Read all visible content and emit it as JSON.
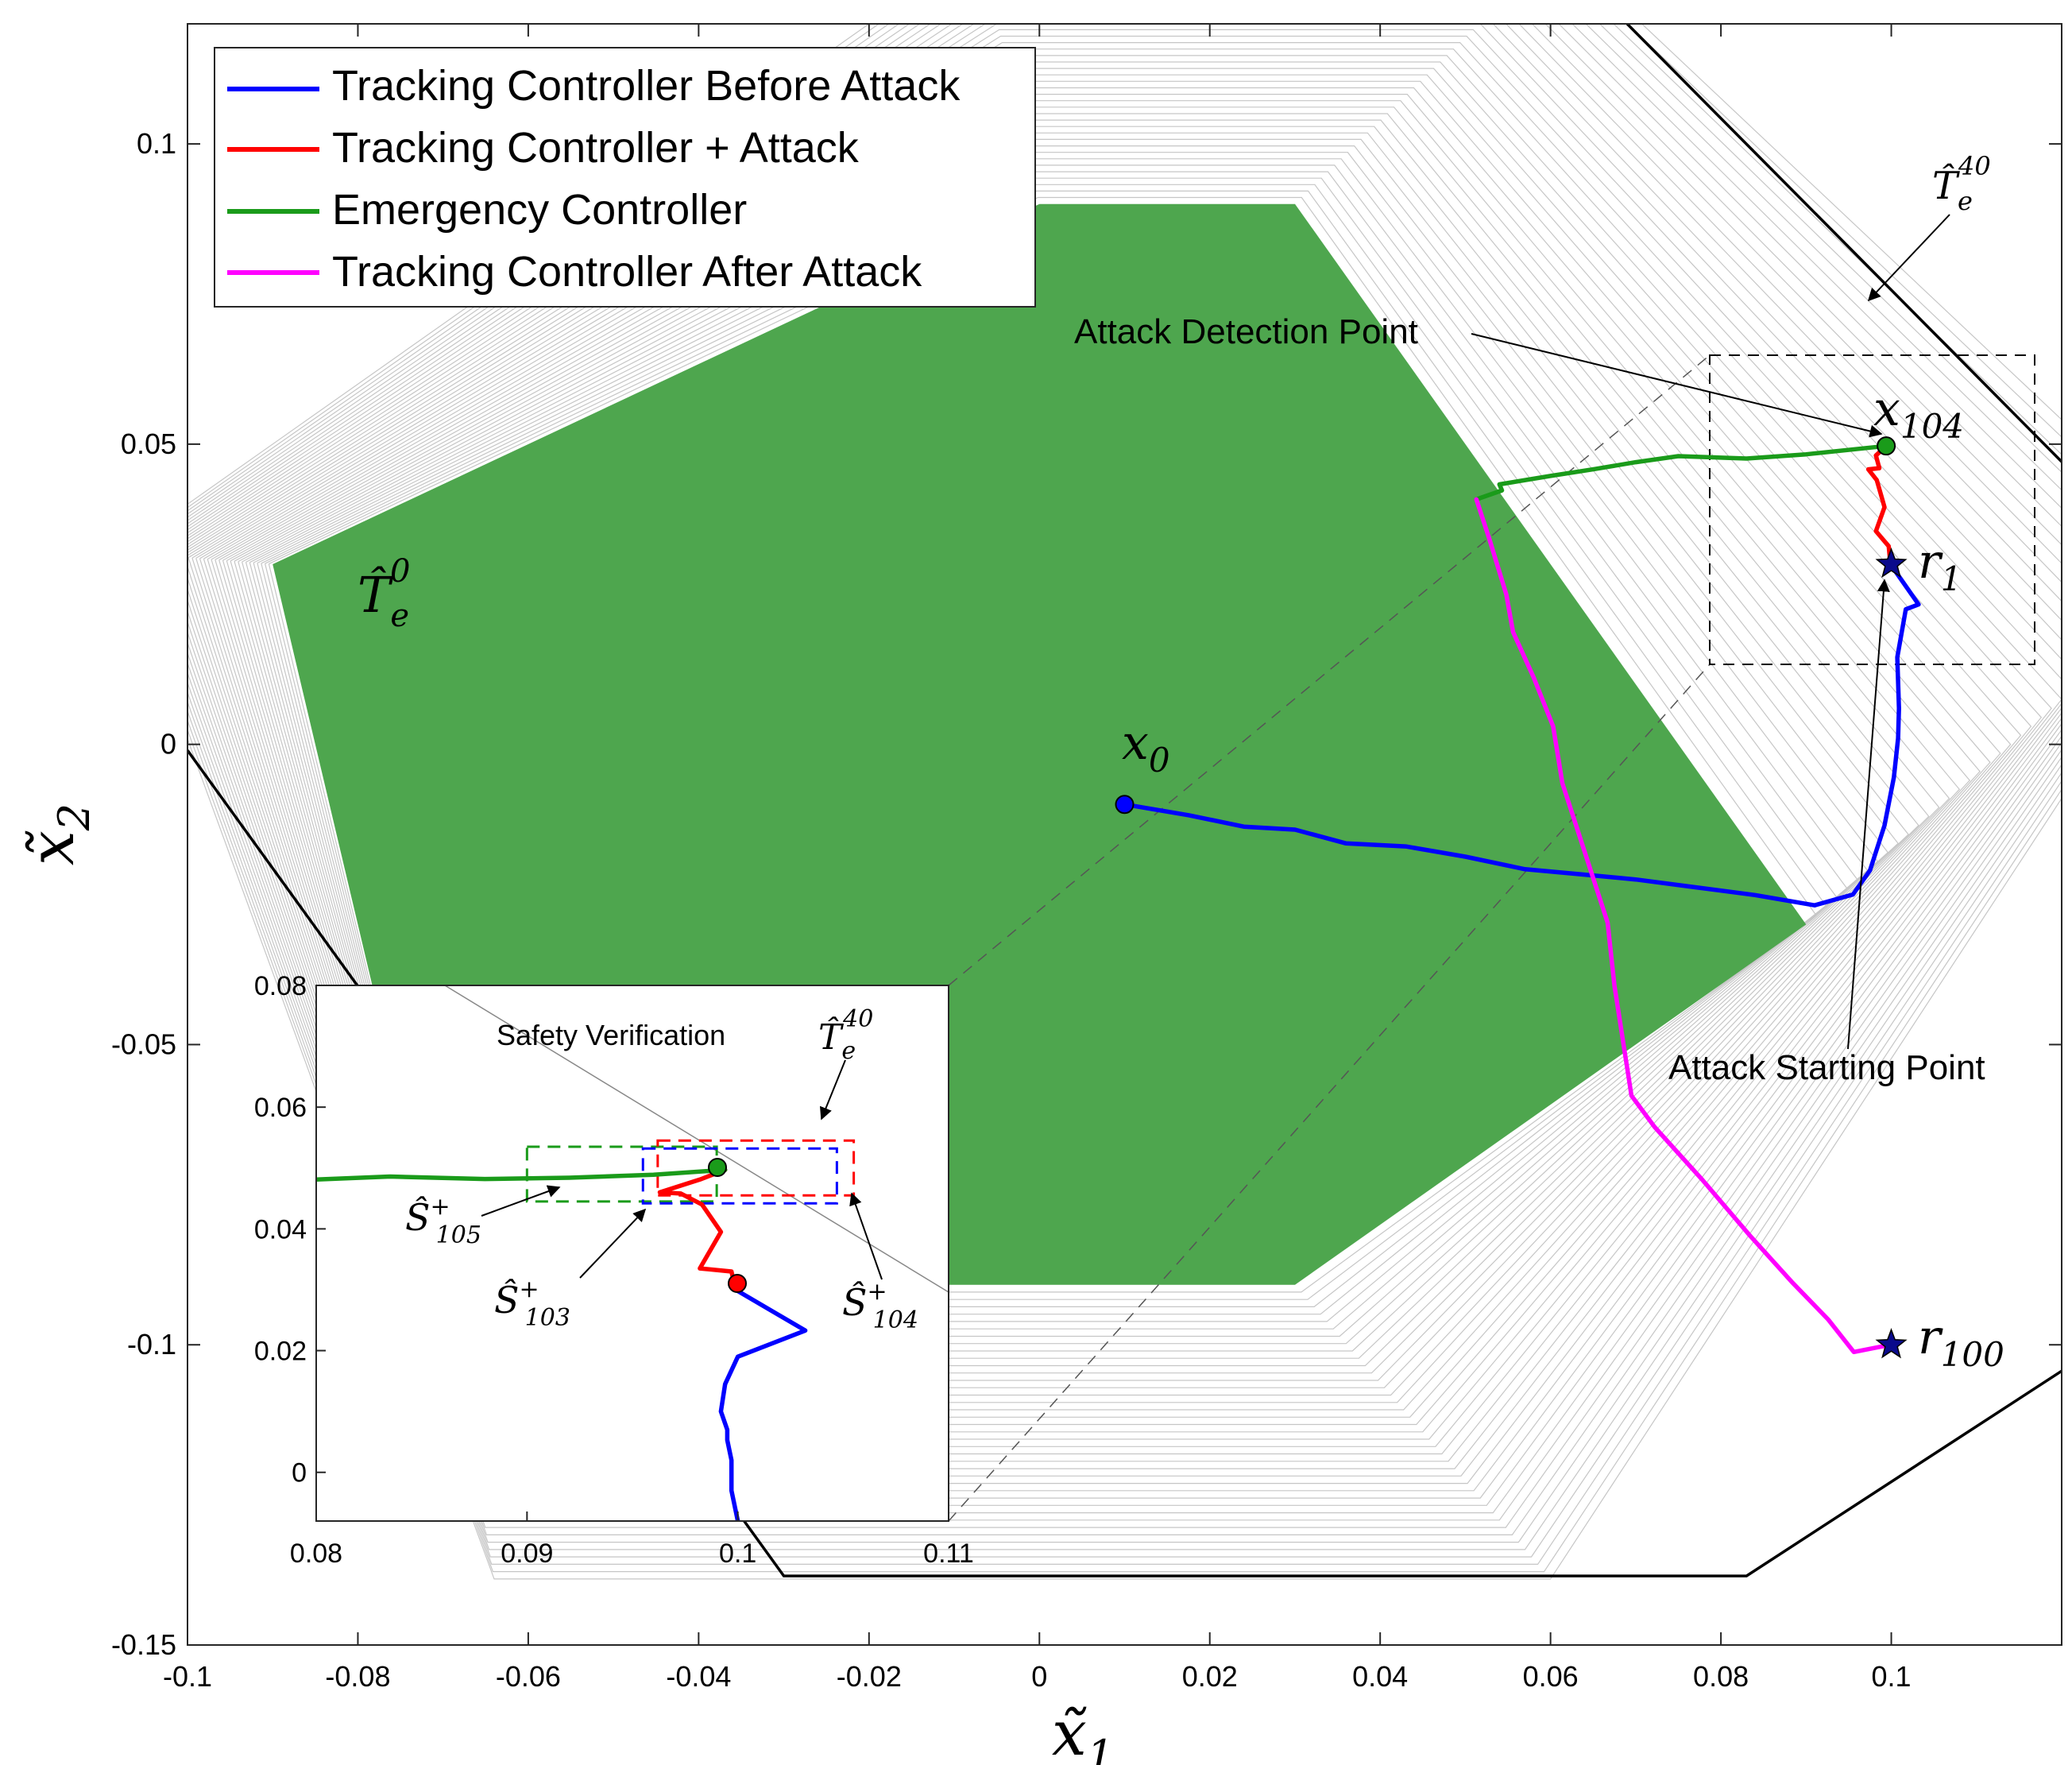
{
  "chart_data": {
    "type": "line",
    "xlabel": "x̃1",
    "ylabel": "x̃2",
    "xlim": [
      -0.1,
      0.12
    ],
    "ylim": [
      -0.15,
      0.12
    ],
    "xticks": [
      "-0.1",
      "-0.08",
      "-0.06",
      "-0.04",
      "-0.02",
      "0",
      "0.02",
      "0.04",
      "0.06",
      "0.08",
      "0.1"
    ],
    "yticks": [
      "0.1",
      "0.05",
      "0",
      "-0.05",
      "-0.1",
      "-0.15"
    ],
    "xtick_values": [
      -0.1,
      -0.08,
      -0.06,
      -0.04,
      -0.02,
      0,
      0.02,
      0.04,
      0.06,
      0.08,
      0.1
    ],
    "ytick_values": [
      0.1,
      0.05,
      0,
      -0.05,
      -0.1,
      -0.15
    ],
    "legend_position": "top-left",
    "series": [
      {
        "name": "Tracking Controller Before Attack",
        "color": "#0000ff",
        "x": [
          0.01,
          0.0175,
          0.024,
          0.03,
          0.036,
          0.043,
          0.05,
          0.057,
          0.064,
          0.07,
          0.077,
          0.084,
          0.091,
          0.0955,
          0.0975,
          0.0992,
          0.1003,
          0.1008,
          0.1009,
          0.1007,
          0.1017,
          0.1032,
          0.0999
        ],
        "y": [
          -0.01,
          -0.0118,
          -0.0137,
          -0.0142,
          -0.0165,
          -0.017,
          -0.0187,
          -0.0208,
          -0.0217,
          -0.0225,
          -0.0238,
          -0.0251,
          -0.0268,
          -0.025,
          -0.021,
          -0.0135,
          -0.0055,
          0.001,
          0.006,
          0.0145,
          0.0225,
          0.0233,
          0.03
        ]
      },
      {
        "name": "Tracking Controller + Attack",
        "color": "#ff0000",
        "x": [
          0.0999,
          0.0997,
          0.0982,
          0.0992,
          0.0989,
          0.0983,
          0.0973,
          0.0986,
          0.0982,
          0.0994
        ],
        "y": [
          0.03,
          0.033,
          0.0355,
          0.0395,
          0.041,
          0.044,
          0.0458,
          0.046,
          0.0481,
          0.0497
        ]
      },
      {
        "name": "Emergency Controller",
        "color": "#1a9b1a",
        "x": [
          0.0994,
          0.09,
          0.083,
          0.075,
          0.07,
          0.065,
          0.06,
          0.054,
          0.0543,
          0.0513
        ],
        "y": [
          0.0497,
          0.0483,
          0.0476,
          0.048,
          0.047,
          0.0458,
          0.0447,
          0.0433,
          0.0423,
          0.0408
        ]
      },
      {
        "name": "Tracking Controller After Attack",
        "color": "#ff00ff",
        "x": [
          0.0513,
          0.0528,
          0.0548,
          0.0556,
          0.058,
          0.0603,
          0.0614,
          0.0638,
          0.0667,
          0.0675,
          0.0695,
          0.0722,
          0.0778,
          0.0834,
          0.0883,
          0.0926,
          0.0956,
          0.0999
        ],
        "y": [
          0.0408,
          0.0343,
          0.025,
          0.0187,
          0.0112,
          0.003,
          -0.0065,
          -0.017,
          -0.0297,
          -0.0402,
          -0.0585,
          -0.0637,
          -0.0725,
          -0.0818,
          -0.0895,
          -0.0958,
          -0.1012,
          -0.1
        ]
      }
    ],
    "points": [
      {
        "label": "x0",
        "x": 0.01,
        "y": -0.01,
        "color": "#0000ff",
        "marker": "circle"
      },
      {
        "label": "x104",
        "x": 0.0994,
        "y": 0.0497,
        "color": "#1a9b1a",
        "marker": "circle"
      },
      {
        "label": "r1",
        "x": 0.1,
        "y": 0.03,
        "color": "#0a0a8c",
        "marker": "star"
      },
      {
        "label": "r100",
        "x": 0.1,
        "y": -0.1,
        "color": "#0a0a8c",
        "marker": "star"
      }
    ],
    "regions": [
      {
        "label": "T̂e0",
        "color": "#4ea64e",
        "x": [
          -0.09,
          0.0,
          0.03,
          0.09,
          0.03,
          -0.07,
          -0.09
        ],
        "y": [
          0.03,
          0.09,
          0.09,
          -0.03,
          -0.09,
          -0.09,
          0.03
        ]
      },
      {
        "label": "T̂e40",
        "color": "#000000",
        "x": [
          -0.1,
          -0.07,
          0.069,
          0.1204,
          0.1204,
          0.083,
          -0.03,
          -0.1
        ],
        "y": [
          0.12,
          0.12,
          0.12,
          0.0465,
          -0.104,
          -0.1385,
          -0.1385,
          -0.001
        ]
      }
    ],
    "annotations": [
      {
        "text": "Attack Detection Point"
      },
      {
        "text": "Attack Starting Point"
      }
    ],
    "labels": {
      "te0_base": "T̂",
      "te0_sub": "e",
      "te0_sup": "0",
      "te40_base": "T̂",
      "te40_sub": "e",
      "te40_sup": "40",
      "x0_base": "x",
      "x0_sub": "0",
      "x104_base": "x",
      "x104_sub": "104",
      "r1_base": "r",
      "r1_sub": "1",
      "r100_base": "r",
      "r100_sub": "100",
      "xlabel_base": "x̃",
      "xlabel_sub": "1",
      "ylabel_base": "x̃",
      "ylabel_sub": "2"
    },
    "inset": {
      "title": "Safety Verification",
      "xlim": [
        0.08,
        0.11
      ],
      "ylim": [
        -0.008,
        0.08
      ],
      "xticks": [
        "0.08",
        "0.09",
        "0.1",
        "0.11"
      ],
      "yticks": [
        "0.08",
        "0.06",
        "0.04",
        "0.02",
        "0"
      ],
      "xtick_values": [
        0.08,
        0.09,
        0.1,
        0.11
      ],
      "ytick_values": [
        0.08,
        0.06,
        0.04,
        0.02,
        0
      ],
      "series": [
        {
          "color": "#0000ff",
          "x": [
            0.1,
            0.0997,
            0.0997,
            0.0995,
            0.0995,
            0.0992,
            0.0994,
            0.1,
            0.1032,
            0.0999
          ],
          "y": [
            -0.008,
            -0.003,
            0.002,
            0.0053,
            0.007,
            0.01,
            0.0145,
            0.019,
            0.0233,
            0.03
          ]
        },
        {
          "color": "#ff0000",
          "x": [
            0.0999,
            0.0997,
            0.0982,
            0.0992,
            0.0989,
            0.0983,
            0.0973,
            0.0963,
            0.0982,
            0.0994
          ],
          "y": [
            0.03,
            0.033,
            0.0335,
            0.0395,
            0.041,
            0.044,
            0.0458,
            0.046,
            0.0481,
            0.0497
          ]
        },
        {
          "color": "#1a9b1a",
          "x": [
            0.0994,
            0.096,
            0.092,
            0.088,
            0.0835,
            0.08
          ],
          "y": [
            0.0497,
            0.0489,
            0.0484,
            0.0482,
            0.0486,
            0.0481
          ]
        }
      ],
      "boxes": [
        {
          "label": "Ŝ+105",
          "color": "#1a9b1a",
          "x": [
            0.09,
            0.099
          ],
          "y": [
            0.0445,
            0.0535
          ]
        },
        {
          "label": "Ŝ+103",
          "color": "#0000ff",
          "x": [
            0.0955,
            0.1047
          ],
          "y": [
            0.0442,
            0.0532
          ]
        },
        {
          "label": "Ŝ+104",
          "color": "#ff0000",
          "x": [
            0.0962,
            0.1055
          ],
          "y": [
            0.0455,
            0.0545
          ]
        }
      ],
      "labels": {
        "s105_base": "Ŝ",
        "s105_sup": "+",
        "s105_sub": "105",
        "s103_base": "Ŝ",
        "s103_sup": "+",
        "s103_sub": "103",
        "s104_base": "Ŝ",
        "s104_sup": "+",
        "s104_sub": "104",
        "te40_base": "T̂",
        "te40_sub": "e",
        "te40_sup": "40"
      }
    }
  }
}
